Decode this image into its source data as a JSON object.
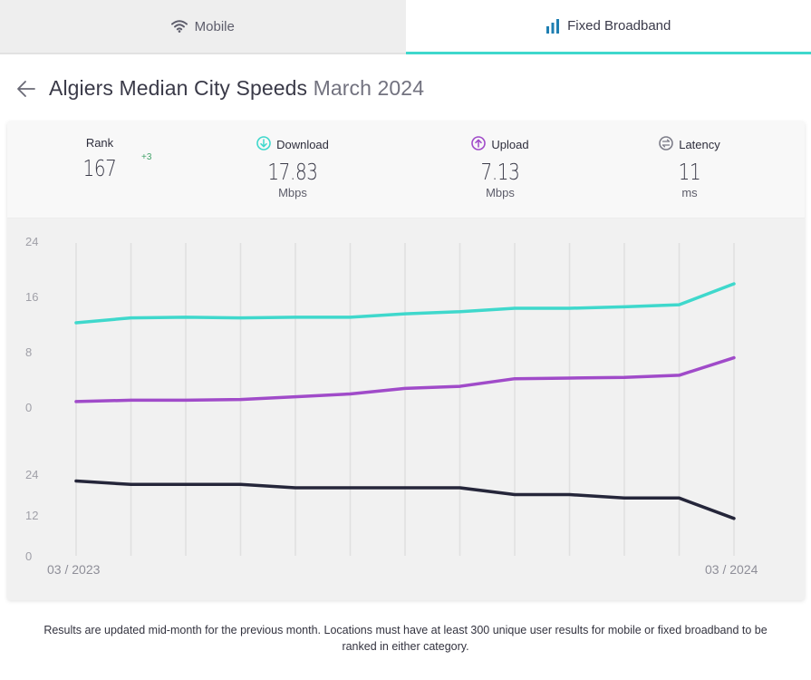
{
  "tabs": {
    "mobile_label": "Mobile",
    "broadband_label": "Fixed Broadband"
  },
  "header": {
    "title": "Algiers Median City Speeds",
    "period": "March 2024"
  },
  "stats": {
    "rank": {
      "label": "Rank",
      "value": "167",
      "change": "+3"
    },
    "download": {
      "label": "Download",
      "value": "17.83",
      "unit": "Mbps"
    },
    "upload": {
      "label": "Upload",
      "value": "7.13",
      "unit": "Mbps"
    },
    "latency": {
      "label": "Latency",
      "value": "11",
      "unit": "ms"
    }
  },
  "colors": {
    "download": "#3fd8cc",
    "upload": "#a04bc9",
    "latency": "#25263a",
    "grid": "#e0e0e0"
  },
  "chart_data": [
    {
      "type": "line",
      "title": "",
      "xlabel": "",
      "ylabel": "",
      "ylim": [
        0,
        24
      ],
      "yticks": [
        "0",
        "8",
        "16",
        "24"
      ],
      "x_start_label": "03 / 2023",
      "x_end_label": "03 / 2024",
      "x": [
        "03/2023",
        "04/2023",
        "05/2023",
        "06/2023",
        "07/2023",
        "08/2023",
        "09/2023",
        "10/2023",
        "11/2023",
        "12/2023",
        "01/2024",
        "02/2024",
        "03/2024"
      ],
      "series": [
        {
          "name": "Download",
          "values": [
            12.2,
            12.9,
            13.0,
            12.9,
            13.0,
            13.0,
            13.5,
            13.8,
            14.3,
            14.3,
            14.5,
            14.8,
            17.83
          ]
        },
        {
          "name": "Upload",
          "values": [
            0.8,
            1.0,
            1.0,
            1.1,
            1.5,
            1.9,
            2.7,
            3.0,
            4.1,
            4.2,
            4.3,
            4.6,
            7.13
          ]
        }
      ]
    },
    {
      "type": "line",
      "title": "",
      "xlabel": "",
      "ylabel": "",
      "ylim": [
        0,
        24
      ],
      "yticks": [
        "0",
        "12",
        "24"
      ],
      "x": [
        "03/2023",
        "04/2023",
        "05/2023",
        "06/2023",
        "07/2023",
        "08/2023",
        "09/2023",
        "10/2023",
        "11/2023",
        "12/2023",
        "01/2024",
        "02/2024",
        "03/2024"
      ],
      "series": [
        {
          "name": "Latency",
          "values": [
            22,
            21,
            21,
            21,
            20,
            20,
            20,
            20,
            18,
            18,
            17,
            17,
            11
          ]
        }
      ]
    }
  ],
  "footer": {
    "note": "Results are updated mid-month for the previous month. Locations must have at least 300 unique user results for mobile or fixed broadband to be ranked in either category."
  }
}
